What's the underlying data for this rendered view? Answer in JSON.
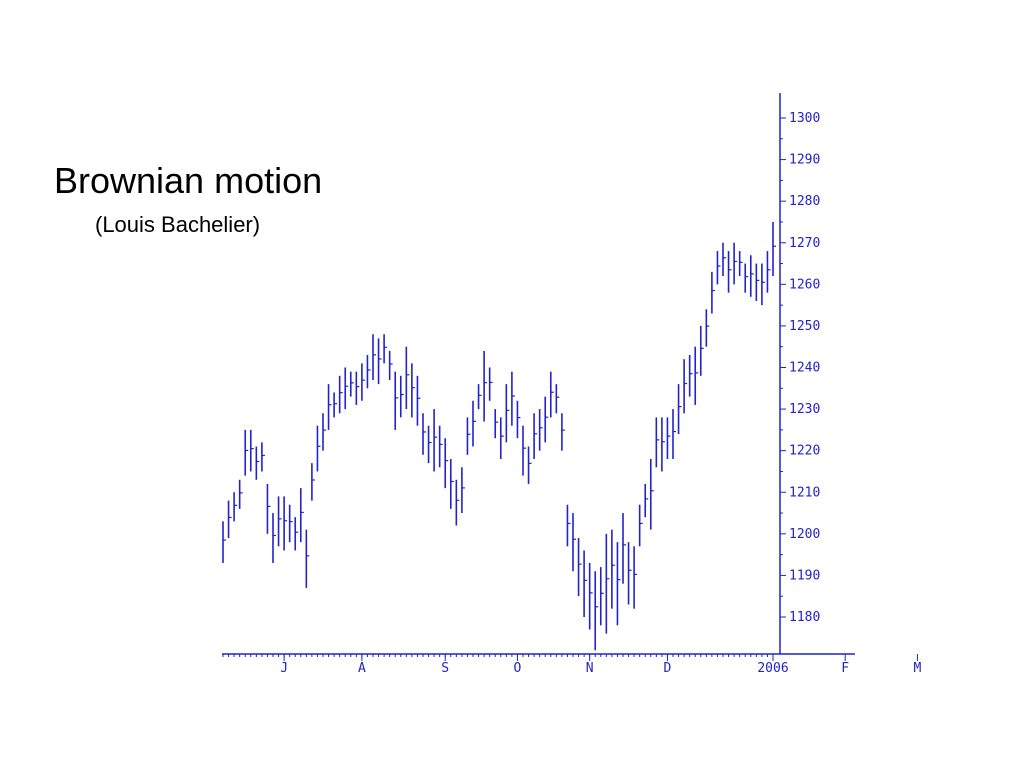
{
  "slide": {
    "title": "Brownian motion",
    "subtitle": "(Louis Bachelier)"
  },
  "chart_data": {
    "type": "ohlc",
    "title": "",
    "xlabel": "",
    "ylabel": "",
    "color": "#2222cc",
    "ylim": [
      1172,
      1302
    ],
    "y_ticks": [
      1300,
      1290,
      1280,
      1270,
      1260,
      1250,
      1240,
      1230,
      1220,
      1210,
      1200,
      1190,
      1180
    ],
    "y_axis_side": "right",
    "grid": false,
    "x_ticks": [
      {
        "label": "J",
        "bar": 11
      },
      {
        "label": "A",
        "bar": 25
      },
      {
        "label": "S",
        "bar": 40
      },
      {
        "label": "O",
        "bar": 53
      },
      {
        "label": "N",
        "bar": 66
      },
      {
        "label": "D",
        "bar": 80
      },
      {
        "label": "2006",
        "bar": 99
      },
      {
        "label": "F",
        "bar": 112
      },
      {
        "label": "M",
        "bar": 125
      }
    ],
    "series": [
      {
        "bars": [
          [
            1193,
            1203
          ],
          [
            1199,
            1208
          ],
          [
            1203,
            1210
          ],
          [
            1206,
            1213
          ],
          [
            1214,
            1225
          ],
          [
            1215,
            1225
          ],
          [
            1213,
            1221
          ],
          [
            1215,
            1222
          ],
          [
            1200,
            1212
          ],
          [
            1193,
            1205
          ],
          [
            1197,
            1209
          ],
          [
            1196,
            1209
          ],
          [
            1198,
            1207
          ],
          [
            1196,
            1204
          ],
          [
            1198,
            1211
          ],
          [
            1187,
            1201
          ],
          [
            1208,
            1217
          ],
          [
            1215,
            1226
          ],
          [
            1220,
            1229
          ],
          [
            1225,
            1236
          ],
          [
            1228,
            1234
          ],
          [
            1229,
            1238
          ],
          [
            1230,
            1240
          ],
          [
            1233,
            1239
          ],
          [
            1231,
            1239
          ],
          [
            1232,
            1241
          ],
          [
            1235,
            1243
          ],
          [
            1237,
            1248
          ],
          [
            1236,
            1247
          ],
          [
            1241,
            1248
          ],
          [
            1237,
            1244
          ],
          [
            1225,
            1239
          ],
          [
            1228,
            1238
          ],
          [
            1230,
            1245
          ],
          [
            1228,
            1241
          ],
          [
            1226,
            1238
          ],
          [
            1219,
            1229
          ],
          [
            1217,
            1226
          ],
          [
            1215,
            1230
          ],
          [
            1216,
            1226
          ],
          [
            1211,
            1223
          ],
          [
            1206,
            1218
          ],
          [
            1202,
            1213
          ],
          [
            1205,
            1216
          ],
          [
            1219,
            1228
          ],
          [
            1221,
            1232
          ],
          [
            1230,
            1236
          ],
          [
            1227,
            1244
          ],
          [
            1232,
            1240
          ],
          [
            1223,
            1230
          ],
          [
            1218,
            1228
          ],
          [
            1222,
            1236
          ],
          [
            1226,
            1239
          ],
          [
            1223,
            1232
          ],
          [
            1214,
            1226
          ],
          [
            1212,
            1221
          ],
          [
            1218,
            1229
          ],
          [
            1220,
            1230
          ],
          [
            1222,
            1233
          ],
          [
            1228,
            1239
          ],
          [
            1229,
            1236
          ],
          [
            1220,
            1229
          ],
          [
            1197,
            1207
          ],
          [
            1191,
            1205
          ],
          [
            1185,
            1199
          ],
          [
            1180,
            1196
          ],
          [
            1177,
            1193
          ],
          [
            1172,
            1191
          ],
          [
            1178,
            1192
          ],
          [
            1176,
            1200
          ],
          [
            1182,
            1201
          ],
          [
            1178,
            1198
          ],
          [
            1188,
            1205
          ],
          [
            1183,
            1198
          ],
          [
            1182,
            1197
          ],
          [
            1197,
            1207
          ],
          [
            1204,
            1212
          ],
          [
            1201,
            1218
          ],
          [
            1216,
            1228
          ],
          [
            1215,
            1228
          ],
          [
            1218,
            1228
          ],
          [
            1218,
            1230
          ],
          [
            1224,
            1236
          ],
          [
            1229,
            1242
          ],
          [
            1233,
            1243
          ],
          [
            1231,
            1245
          ],
          [
            1238,
            1250
          ],
          [
            1245,
            1254
          ],
          [
            1253,
            1263
          ],
          [
            1260,
            1268
          ],
          [
            1262,
            1270
          ],
          [
            1258,
            1268
          ],
          [
            1260,
            1270
          ],
          [
            1262,
            1268
          ],
          [
            1258,
            1265
          ],
          [
            1257,
            1267
          ],
          [
            1256,
            1265
          ],
          [
            1255,
            1265
          ],
          [
            1258,
            1268
          ],
          [
            1262,
            1275
          ]
        ]
      }
    ]
  }
}
